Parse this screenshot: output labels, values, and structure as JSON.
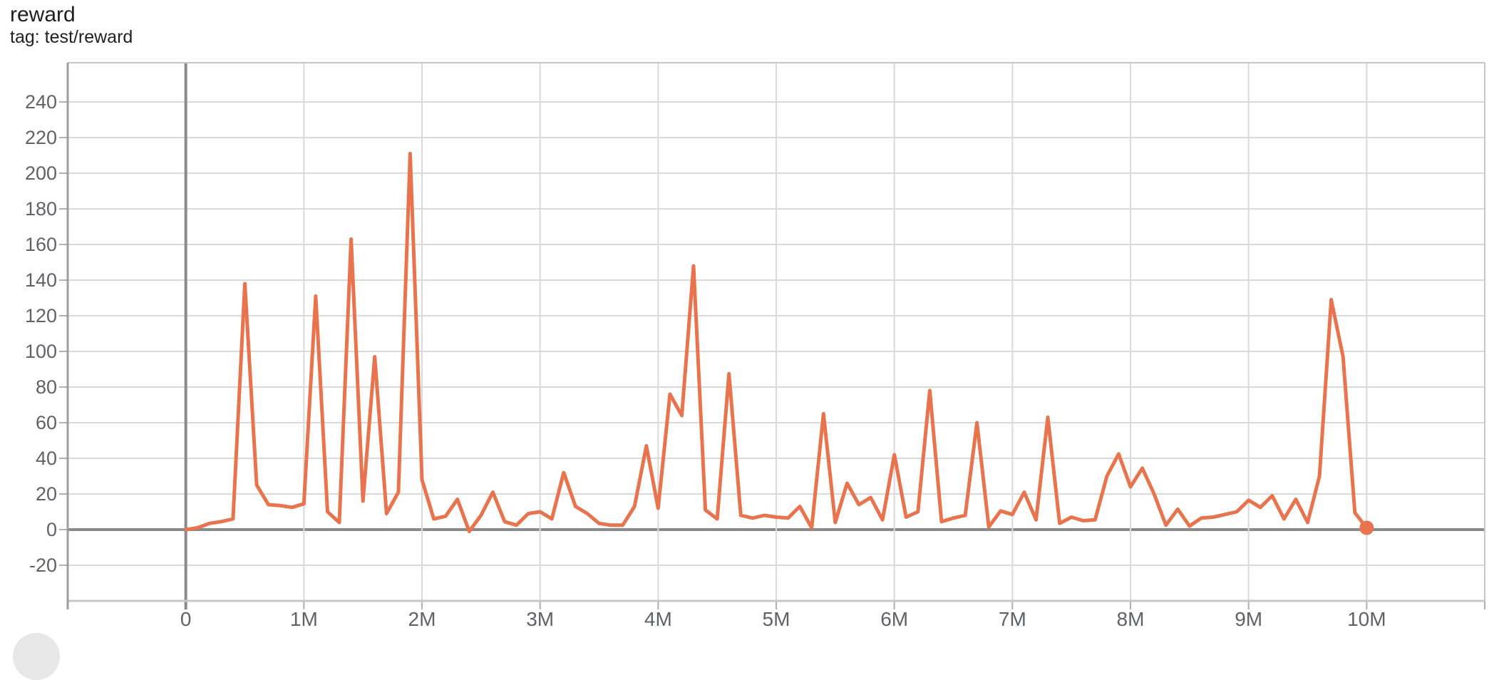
{
  "header": {
    "title": "reward",
    "subtitle": "tag: test/reward"
  },
  "chart_data": {
    "type": "line",
    "title": "reward",
    "tag": "test/reward",
    "xlabel": "",
    "ylabel": "",
    "x_unit": "training steps (M = millions)",
    "grid": true,
    "legend": "none",
    "xlim_m": [
      -1,
      11
    ],
    "ylim": [
      -40,
      262
    ],
    "y_ticks": [
      -20,
      0,
      20,
      40,
      60,
      80,
      100,
      120,
      140,
      160,
      180,
      200,
      220,
      240
    ],
    "x_ticks": [
      {
        "m": 0,
        "label": "0"
      },
      {
        "m": 1,
        "label": "1M"
      },
      {
        "m": 2,
        "label": "2M"
      },
      {
        "m": 3,
        "label": "3M"
      },
      {
        "m": 4,
        "label": "4M"
      },
      {
        "m": 5,
        "label": "5M"
      },
      {
        "m": 6,
        "label": "6M"
      },
      {
        "m": 7,
        "label": "7M"
      },
      {
        "m": 8,
        "label": "8M"
      },
      {
        "m": 9,
        "label": "9M"
      },
      {
        "m": 10,
        "label": "10M"
      },
      {
        "m": 11,
        "label": ""
      }
    ],
    "series": [
      {
        "name": "test/reward",
        "color": "#e9734d",
        "line_width": 5,
        "end_marker": true,
        "end_marker_radius": 10,
        "x_start_m": 0,
        "x_step_m": 0.1,
        "values": [
          0,
          1,
          3.5,
          4.5,
          6,
          138,
          25,
          14,
          13.5,
          12.5,
          14.5,
          131,
          10,
          4,
          163,
          16,
          97,
          9,
          21,
          211,
          28,
          6,
          7.5,
          17,
          -1,
          8,
          21,
          4.5,
          2.5,
          9,
          10,
          6,
          32,
          13,
          9,
          3.5,
          2.5,
          2.5,
          13,
          47,
          12,
          76,
          64,
          148,
          11,
          6,
          87.5,
          8,
          6.5,
          8,
          7,
          6.5,
          13,
          1,
          65,
          4,
          26,
          14,
          18,
          5.5,
          42,
          7,
          10,
          78,
          4.5,
          6.5,
          8,
          60,
          1.5,
          10.5,
          8.5,
          21,
          5.5,
          63,
          3.5,
          7,
          5,
          5.5,
          30,
          42.5,
          24,
          34.5,
          20,
          2.5,
          11.5,
          2,
          6.5,
          7,
          8.5,
          10,
          16.5,
          12.5,
          19,
          6,
          17,
          4,
          30,
          129,
          97,
          9.5,
          1
        ]
      }
    ],
    "style": {
      "background": "#ffffff",
      "gridline_color": "#dadada",
      "border_color": "#c7c7c7",
      "left_axis_color": "#9e9e9e",
      "zero_line_color": "#8a8a8a",
      "tick_color": "#b0b0b0",
      "tick_label_color": "#5f6368",
      "series_color": "#e9734d"
    }
  }
}
